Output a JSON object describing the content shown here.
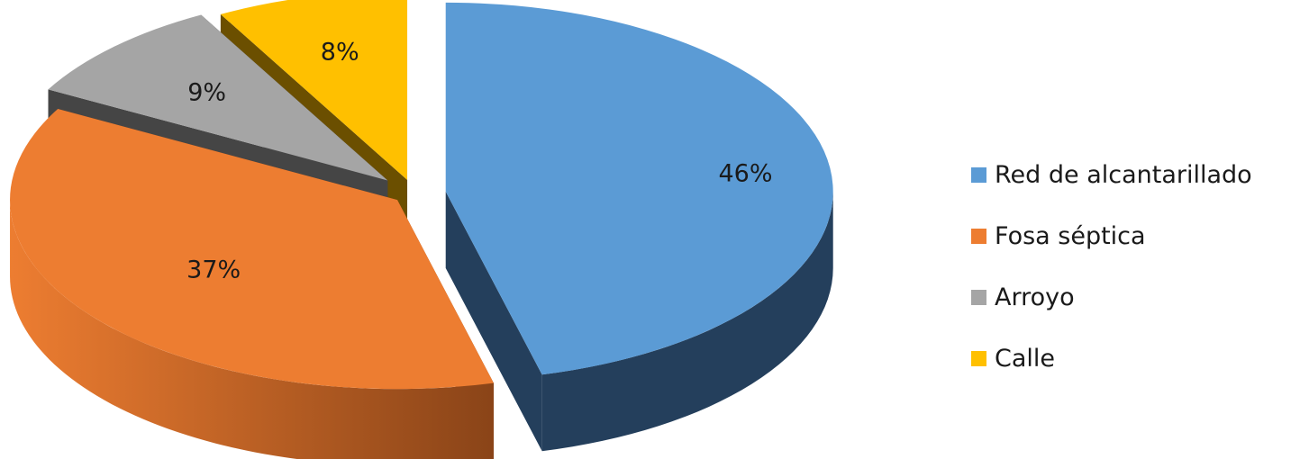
{
  "chart_data": {
    "type": "pie",
    "style": "3d-exploded",
    "categories": [
      "Red de alcantarillado",
      "Fosa séptica",
      "Arroyo",
      "Calle"
    ],
    "values": [
      46,
      37,
      9,
      8
    ],
    "data_labels": [
      "46%",
      "37%",
      "9%",
      "8%"
    ],
    "colors": [
      "#5b9bd5",
      "#ed7d31",
      "#a5a5a5",
      "#ffc000"
    ],
    "side_colors": [
      "#243f5c",
      "#8a4418",
      "#454545",
      "#6b4f00"
    ],
    "legend_position": "right"
  }
}
